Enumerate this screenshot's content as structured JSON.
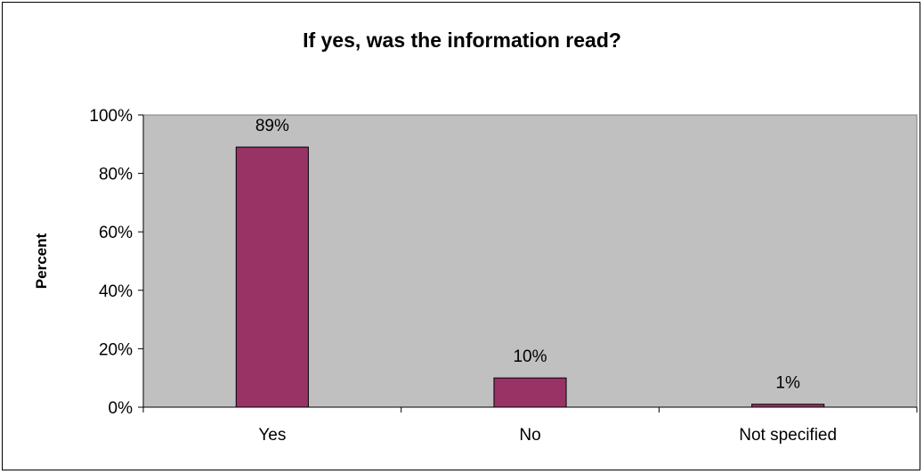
{
  "chart_data": {
    "type": "bar",
    "title": "If yes, was the information read?",
    "xlabel": "",
    "ylabel": "Percent",
    "categories": [
      "Yes",
      "No",
      "Not specified"
    ],
    "values": [
      89,
      10,
      1
    ],
    "data_labels": [
      "89%",
      "10%",
      "1%"
    ],
    "ylim": [
      0,
      100
    ],
    "yticks": [
      0,
      20,
      40,
      60,
      80,
      100
    ],
    "ytick_labels": [
      "0%",
      "20%",
      "40%",
      "60%",
      "80%",
      "100%"
    ],
    "grid": false,
    "legend": "none",
    "colors": {
      "bar": "#993366",
      "plot_background": "#C0C0C0",
      "plot_border": "#808080"
    }
  }
}
